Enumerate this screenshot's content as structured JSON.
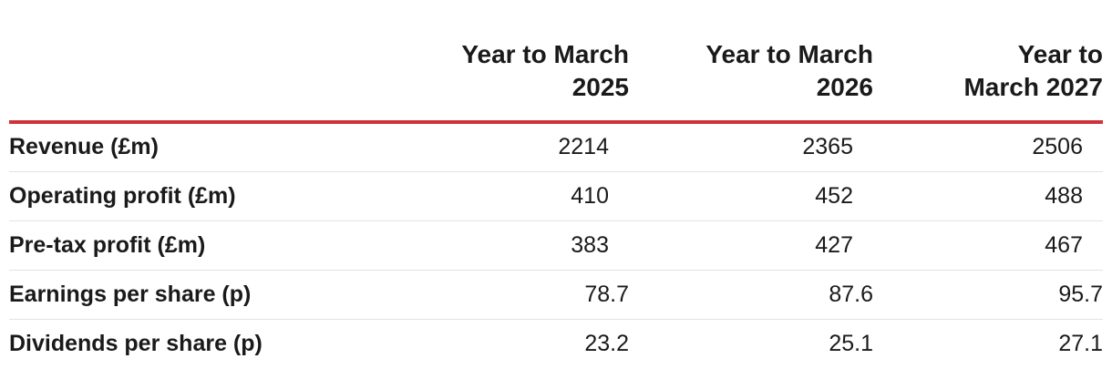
{
  "table": {
    "label_header": "",
    "columns": [
      "Year to March\n2025",
      "Year to March\n2026",
      "Year to\nMarch 2027"
    ],
    "columns_lines": [
      [
        "Year to March",
        "2025"
      ],
      [
        "Year to March",
        "2026"
      ],
      [
        "Year to",
        "March 2027"
      ]
    ],
    "rows": [
      {
        "label": "Revenue (£m)",
        "values": [
          "2214",
          "2365",
          "2506"
        ]
      },
      {
        "label": "Operating profit (£m)",
        "values": [
          "410",
          "452",
          "488"
        ]
      },
      {
        "label": "Pre-tax profit (£m)",
        "values": [
          "383",
          "427",
          "467"
        ]
      },
      {
        "label": "Earnings per share (p)",
        "values": [
          "78.7",
          "87.6",
          "95.7"
        ]
      },
      {
        "label": "Dividends per share (p)",
        "values": [
          "23.2",
          "25.1",
          "27.1"
        ]
      }
    ]
  },
  "colors": {
    "header_rule": "#d0323c",
    "row_divider": "#e2e2e2",
    "text": "#1a1a1a"
  }
}
